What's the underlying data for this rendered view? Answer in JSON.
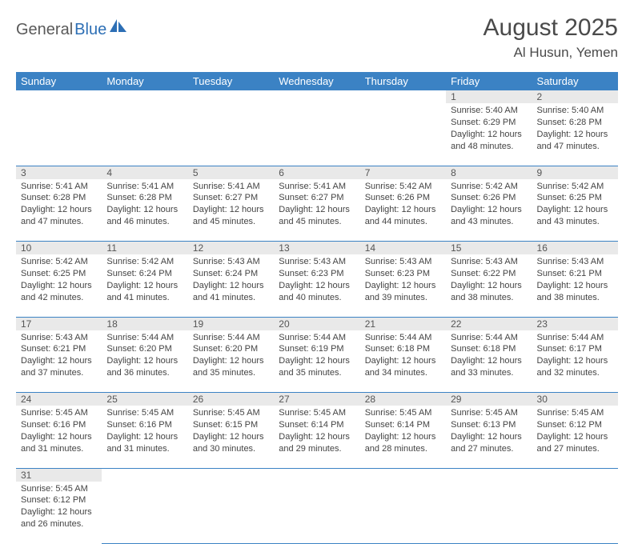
{
  "logo": {
    "text1": "General",
    "text2": "Blue"
  },
  "title": "August 2025",
  "location": "Al Husun, Yemen",
  "header_bg": "#3b82c4",
  "weekdays": [
    "Sunday",
    "Monday",
    "Tuesday",
    "Wednesday",
    "Thursday",
    "Friday",
    "Saturday"
  ],
  "weeks": [
    {
      "nums": [
        "",
        "",
        "",
        "",
        "",
        "1",
        "2"
      ],
      "cells": [
        "",
        "",
        "",
        "",
        "",
        "Sunrise: 5:40 AM\nSunset: 6:29 PM\nDaylight: 12 hours and 48 minutes.",
        "Sunrise: 5:40 AM\nSunset: 6:28 PM\nDaylight: 12 hours and 47 minutes."
      ]
    },
    {
      "nums": [
        "3",
        "4",
        "5",
        "6",
        "7",
        "8",
        "9"
      ],
      "cells": [
        "Sunrise: 5:41 AM\nSunset: 6:28 PM\nDaylight: 12 hours and 47 minutes.",
        "Sunrise: 5:41 AM\nSunset: 6:28 PM\nDaylight: 12 hours and 46 minutes.",
        "Sunrise: 5:41 AM\nSunset: 6:27 PM\nDaylight: 12 hours and 45 minutes.",
        "Sunrise: 5:41 AM\nSunset: 6:27 PM\nDaylight: 12 hours and 45 minutes.",
        "Sunrise: 5:42 AM\nSunset: 6:26 PM\nDaylight: 12 hours and 44 minutes.",
        "Sunrise: 5:42 AM\nSunset: 6:26 PM\nDaylight: 12 hours and 43 minutes.",
        "Sunrise: 5:42 AM\nSunset: 6:25 PM\nDaylight: 12 hours and 43 minutes."
      ]
    },
    {
      "nums": [
        "10",
        "11",
        "12",
        "13",
        "14",
        "15",
        "16"
      ],
      "cells": [
        "Sunrise: 5:42 AM\nSunset: 6:25 PM\nDaylight: 12 hours and 42 minutes.",
        "Sunrise: 5:42 AM\nSunset: 6:24 PM\nDaylight: 12 hours and 41 minutes.",
        "Sunrise: 5:43 AM\nSunset: 6:24 PM\nDaylight: 12 hours and 41 minutes.",
        "Sunrise: 5:43 AM\nSunset: 6:23 PM\nDaylight: 12 hours and 40 minutes.",
        "Sunrise: 5:43 AM\nSunset: 6:23 PM\nDaylight: 12 hours and 39 minutes.",
        "Sunrise: 5:43 AM\nSunset: 6:22 PM\nDaylight: 12 hours and 38 minutes.",
        "Sunrise: 5:43 AM\nSunset: 6:21 PM\nDaylight: 12 hours and 38 minutes."
      ]
    },
    {
      "nums": [
        "17",
        "18",
        "19",
        "20",
        "21",
        "22",
        "23"
      ],
      "cells": [
        "Sunrise: 5:43 AM\nSunset: 6:21 PM\nDaylight: 12 hours and 37 minutes.",
        "Sunrise: 5:44 AM\nSunset: 6:20 PM\nDaylight: 12 hours and 36 minutes.",
        "Sunrise: 5:44 AM\nSunset: 6:20 PM\nDaylight: 12 hours and 35 minutes.",
        "Sunrise: 5:44 AM\nSunset: 6:19 PM\nDaylight: 12 hours and 35 minutes.",
        "Sunrise: 5:44 AM\nSunset: 6:18 PM\nDaylight: 12 hours and 34 minutes.",
        "Sunrise: 5:44 AM\nSunset: 6:18 PM\nDaylight: 12 hours and 33 minutes.",
        "Sunrise: 5:44 AM\nSunset: 6:17 PM\nDaylight: 12 hours and 32 minutes."
      ]
    },
    {
      "nums": [
        "24",
        "25",
        "26",
        "27",
        "28",
        "29",
        "30"
      ],
      "cells": [
        "Sunrise: 5:45 AM\nSunset: 6:16 PM\nDaylight: 12 hours and 31 minutes.",
        "Sunrise: 5:45 AM\nSunset: 6:16 PM\nDaylight: 12 hours and 31 minutes.",
        "Sunrise: 5:45 AM\nSunset: 6:15 PM\nDaylight: 12 hours and 30 minutes.",
        "Sunrise: 5:45 AM\nSunset: 6:14 PM\nDaylight: 12 hours and 29 minutes.",
        "Sunrise: 5:45 AM\nSunset: 6:14 PM\nDaylight: 12 hours and 28 minutes.",
        "Sunrise: 5:45 AM\nSunset: 6:13 PM\nDaylight: 12 hours and 27 minutes.",
        "Sunrise: 5:45 AM\nSunset: 6:12 PM\nDaylight: 12 hours and 27 minutes."
      ]
    },
    {
      "nums": [
        "31",
        "",
        "",
        "",
        "",
        "",
        ""
      ],
      "cells": [
        "Sunrise: 5:45 AM\nSunset: 6:12 PM\nDaylight: 12 hours and 26 minutes.",
        "",
        "",
        "",
        "",
        "",
        ""
      ]
    }
  ]
}
